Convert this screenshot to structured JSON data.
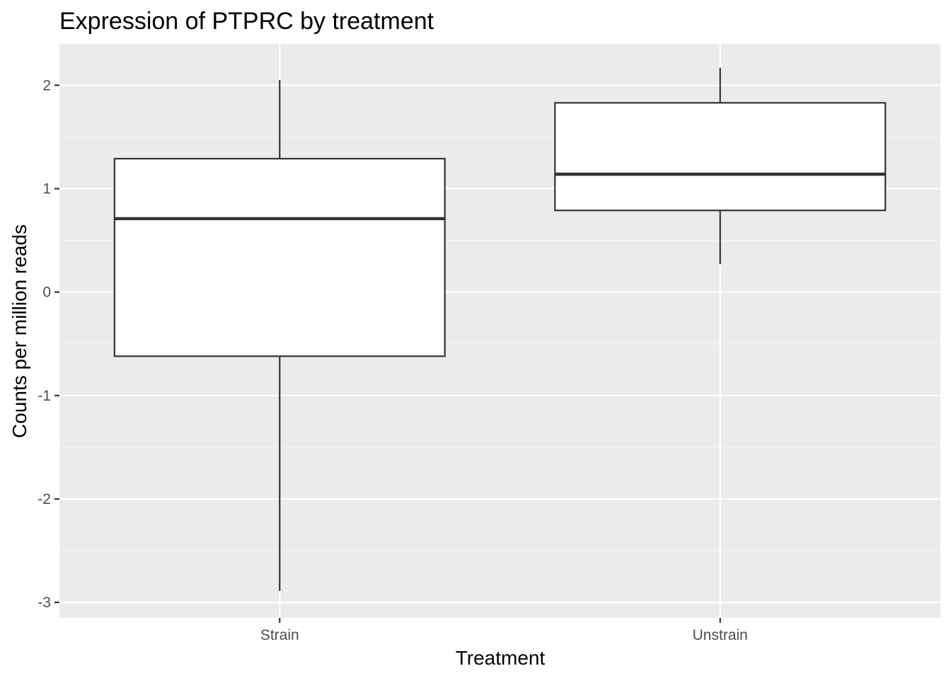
{
  "chart_data": {
    "type": "box",
    "title": "Expression of PTPRC by treatment",
    "xlabel": "Treatment",
    "ylabel": "Counts per million reads",
    "categories": [
      "Strain",
      "Unstrain"
    ],
    "boxes": [
      {
        "category": "Strain",
        "min": -2.89,
        "q1": -0.62,
        "median": 0.71,
        "q3": 1.29,
        "max": 2.05
      },
      {
        "category": "Unstrain",
        "min": 0.27,
        "q1": 0.79,
        "median": 1.14,
        "q3": 1.83,
        "max": 2.17
      }
    ],
    "y_ticks": [
      -3,
      -2,
      -1,
      0,
      1,
      2
    ],
    "y_tick_labels": [
      "-3",
      "-2",
      "-1",
      "0",
      "1",
      "2"
    ],
    "ylim": [
      -3.15,
      2.4
    ],
    "grid": true,
    "colors": {
      "panel_background": "#ebebeb",
      "grid_major": "#ffffff",
      "grid_minor": "#f5f5f5",
      "box_fill": "#ffffff",
      "box_stroke": "#333333",
      "tick": "#333333"
    }
  }
}
